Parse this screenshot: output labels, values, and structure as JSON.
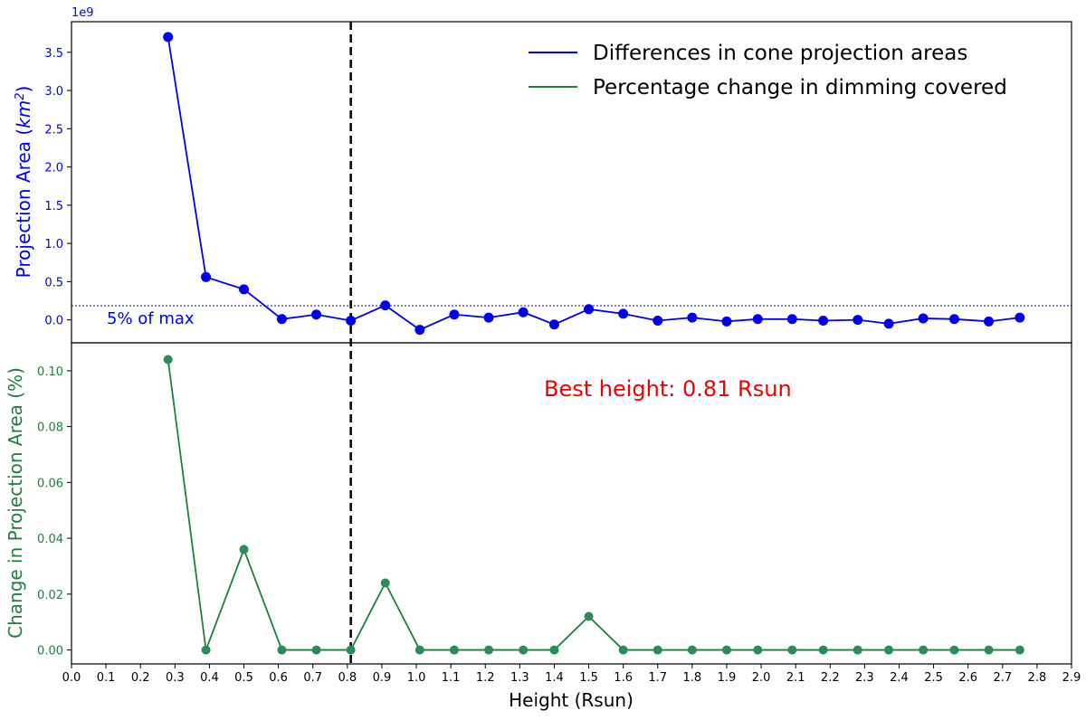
{
  "chart_data": {
    "type": "line",
    "xlabel": "Height (Rsun)",
    "xlim": [
      0.0,
      2.9
    ],
    "x_ticks": [
      "0.0",
      "0.1",
      "0.2",
      "0.3",
      "0.4",
      "0.5",
      "0.6",
      "0.7",
      "0.8",
      "0.9",
      "1.0",
      "1.1",
      "1.2",
      "1.3",
      "1.4",
      "1.5",
      "1.6",
      "1.7",
      "1.8",
      "1.9",
      "2.0",
      "2.1",
      "2.2",
      "2.3",
      "2.4",
      "2.5",
      "2.6",
      "2.7",
      "2.8",
      "2.9"
    ],
    "best_height": 0.81,
    "best_height_label": "Best height: 0.81 Rsun",
    "threshold_label": "5% of max",
    "threshold_value": 0.185,
    "legend": [
      "Differences in cone projection areas",
      "Percentage change in dimming covered"
    ],
    "legend_position": "upper-right",
    "colors": {
      "top": "#0000ee",
      "bottom": "#1f7f3f",
      "bottom_marker": "#2e8b57",
      "annotation": "#ee0000",
      "best_line": "#000000"
    },
    "x": [
      0.28,
      0.39,
      0.5,
      0.61,
      0.71,
      0.81,
      0.91,
      1.01,
      1.11,
      1.21,
      1.31,
      1.4,
      1.5,
      1.6,
      1.7,
      1.8,
      1.9,
      1.99,
      2.09,
      2.18,
      2.28,
      2.37,
      2.47,
      2.56,
      2.66,
      2.75
    ],
    "top_panel": {
      "ylabel": "Projection Area (km²)",
      "ylabel_base": "Projection Area (",
      "ylabel_unit": "km",
      "ylabel_exp": "2",
      "ylabel_end": ")",
      "offset_label": "1e9",
      "ylim": [
        -0.3,
        3.9
      ],
      "y_ticks": [
        "0.0",
        "0.5",
        "1.0",
        "1.5",
        "2.0",
        "2.5",
        "3.0",
        "3.5"
      ],
      "values": [
        3.7,
        0.56,
        0.4,
        0.01,
        0.07,
        -0.01,
        0.19,
        -0.13,
        0.07,
        0.03,
        0.1,
        -0.06,
        0.14,
        0.08,
        -0.01,
        0.03,
        -0.02,
        0.01,
        0.01,
        -0.01,
        0.0,
        -0.05,
        0.02,
        0.01,
        -0.02,
        0.03
      ]
    },
    "bottom_panel": {
      "ylabel": "Change in Projection Area (%)",
      "ylim": [
        -0.005,
        0.11
      ],
      "y_ticks": [
        "0.00",
        "0.02",
        "0.04",
        "0.06",
        "0.08",
        "0.10"
      ],
      "values": [
        0.104,
        0.0,
        0.036,
        0.0,
        0.0,
        0.0,
        0.024,
        0.0,
        0.0,
        0.0,
        0.0,
        0.0,
        0.012,
        0.0,
        0.0,
        0.0,
        0.0,
        0.0,
        0.0,
        0.0,
        0.0,
        0.0,
        0.0,
        0.0,
        0.0,
        0.0
      ]
    }
  }
}
